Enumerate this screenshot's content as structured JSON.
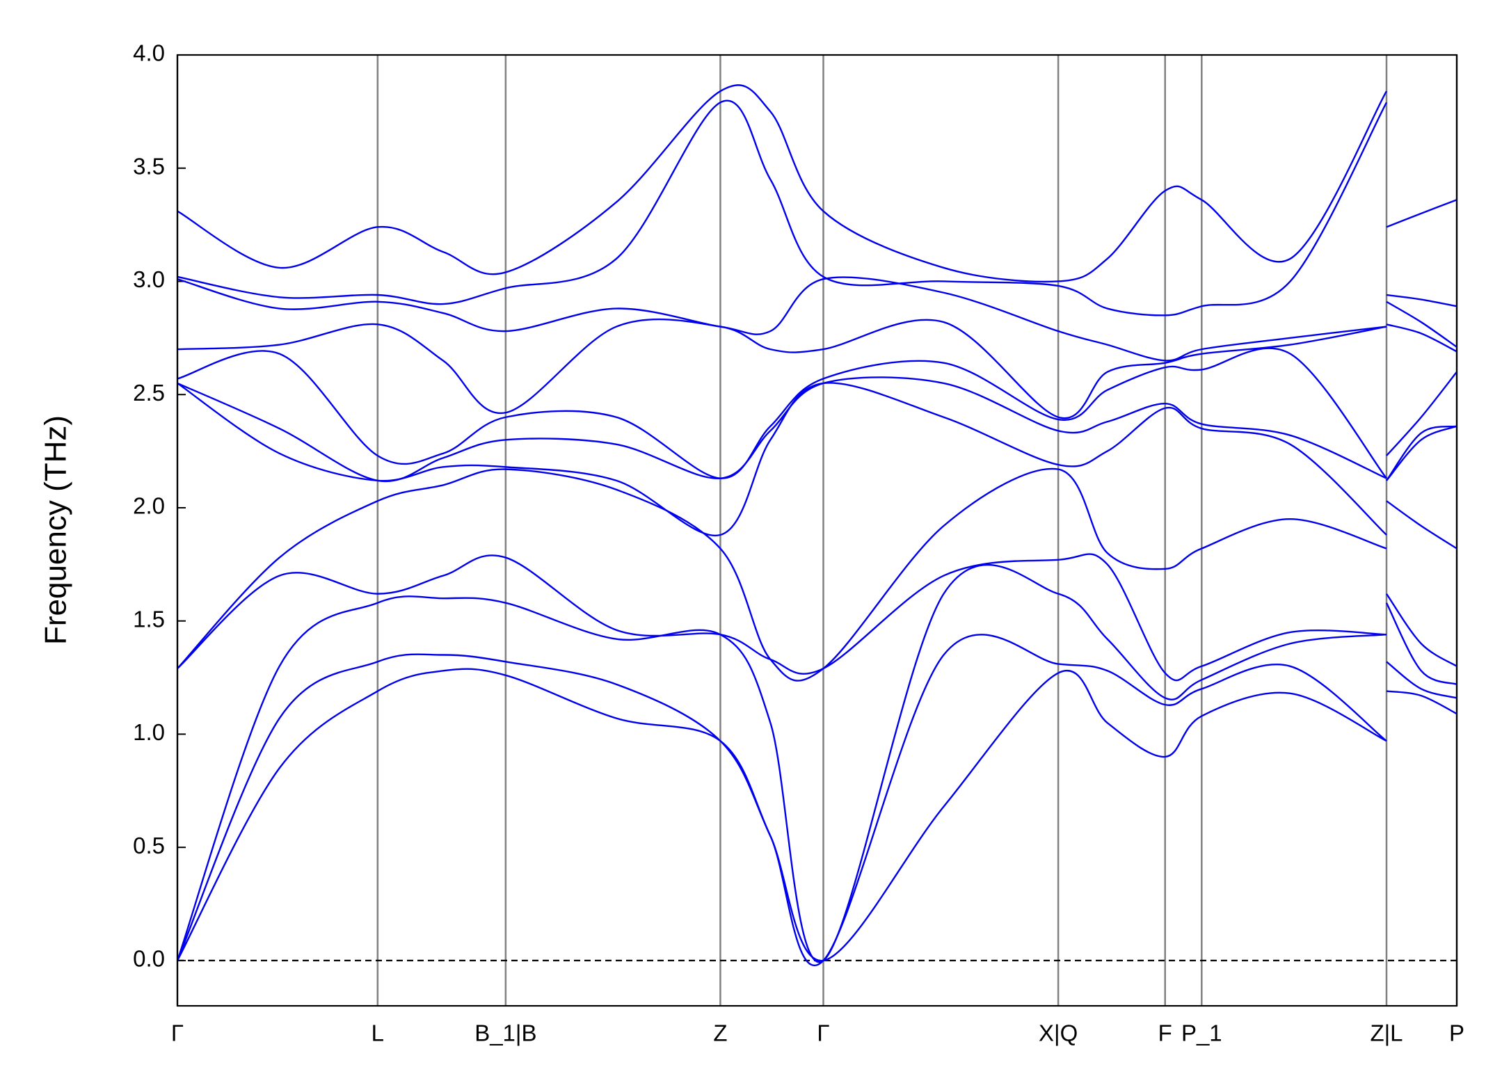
{
  "chart_data": {
    "type": "line",
    "ylabel": "Frequency (THz)",
    "color": "#0000ee",
    "zero_line": true,
    "xlim": [
      0,
      13.29
    ],
    "ylim": [
      -0.2,
      4.0
    ],
    "xticks": [
      {
        "value": 0,
        "label": "Γ"
      },
      {
        "value": 2.08,
        "label": "L"
      },
      {
        "value": 3.41,
        "label": "B_1|B"
      },
      {
        "value": 5.64,
        "label": "Z"
      },
      {
        "value": 6.71,
        "label": "Γ"
      },
      {
        "value": 9.15,
        "label": "X|Q"
      },
      {
        "value": 10.26,
        "label": "F"
      },
      {
        "value": 10.64,
        "label": "P_1"
      },
      {
        "value": 12.56,
        "label": "Z|L"
      },
      {
        "value": 13.29,
        "label": "P"
      }
    ],
    "yticks": [
      {
        "value": 0,
        "label": "0.0"
      },
      0.5,
      {
        "value": 1,
        "label": "1.0"
      },
      1.5,
      {
        "value": 2,
        "label": "2.0"
      },
      2.5,
      {
        "value": 3,
        "label": "3.0"
      },
      3.5,
      {
        "value": 4,
        "label": "4.0"
      }
    ],
    "x": [
      0,
      1.06,
      2.08,
      2.76,
      3.41,
      4.56,
      5.64,
      6.16,
      6.71,
      7.96,
      9.15,
      9.66,
      10.26,
      10.64,
      11.56,
      12.56
    ],
    "series": [
      {
        "values": [
          0,
          0.85,
          1.19,
          1.28,
          1.26,
          1.07,
          0.97,
          0.55,
          0,
          0.68,
          1.27,
          1.05,
          0.9,
          1.08,
          1.18,
          0.97
        ]
      },
      {
        "values": [
          0,
          1.07,
          1.32,
          1.35,
          1.32,
          1.22,
          0.97,
          0.55,
          0,
          1.35,
          1.31,
          1.28,
          1.13,
          1.2,
          1.3,
          0.97
        ]
      },
      {
        "values": [
          0,
          1.3,
          1.58,
          1.6,
          1.58,
          1.42,
          1.44,
          1.05,
          0,
          1.62,
          1.62,
          1.42,
          1.16,
          1.24,
          1.4,
          1.44
        ]
      },
      {
        "values": [
          1.29,
          1.7,
          1.62,
          1.7,
          1.78,
          1.46,
          1.44,
          1.33,
          1.29,
          1.7,
          1.77,
          1.75,
          1.27,
          1.3,
          1.45,
          1.44
        ]
      },
      {
        "values": [
          1.29,
          1.78,
          2.03,
          2.1,
          2.17,
          2.08,
          1.82,
          1.33,
          1.29,
          1.92,
          2.17,
          1.8,
          1.73,
          1.82,
          1.95,
          1.82
        ]
      },
      {
        "values": [
          2.55,
          2.24,
          2.12,
          2.18,
          2.18,
          2.12,
          1.88,
          2.3,
          2.55,
          2.4,
          2.19,
          2.25,
          2.44,
          2.35,
          2.28,
          1.88
        ]
      },
      {
        "values": [
          2.55,
          2.35,
          2.12,
          2.22,
          2.3,
          2.28,
          2.13,
          2.34,
          2.55,
          2.55,
          2.34,
          2.38,
          2.46,
          2.37,
          2.32,
          2.13
        ]
      },
      {
        "values": [
          2.57,
          2.68,
          2.23,
          2.24,
          2.4,
          2.4,
          2.13,
          2.36,
          2.57,
          2.64,
          2.39,
          2.52,
          2.62,
          2.61,
          2.68,
          2.13
        ]
      },
      {
        "values": [
          2.7,
          2.72,
          2.81,
          2.65,
          2.42,
          2.8,
          2.8,
          2.7,
          2.7,
          2.82,
          2.4,
          2.6,
          2.64,
          2.68,
          2.72,
          2.8
        ]
      },
      {
        "values": [
          3.01,
          2.88,
          2.91,
          2.86,
          2.78,
          2.88,
          2.8,
          2.78,
          3.01,
          2.95,
          2.78,
          2.72,
          2.65,
          2.7,
          2.75,
          2.8
        ]
      },
      {
        "values": [
          3.02,
          2.93,
          2.94,
          2.9,
          2.97,
          3.1,
          3.79,
          3.45,
          3.02,
          3.0,
          2.98,
          2.88,
          2.85,
          2.89,
          3.0,
          3.79
        ]
      },
      {
        "values": [
          3.31,
          3.06,
          3.24,
          3.13,
          3.04,
          3.35,
          3.84,
          3.75,
          3.31,
          3.06,
          3.0,
          3.1,
          3.4,
          3.36,
          3.1,
          3.84
        ]
      },
      {
        "x": [
          12.56,
          12.92,
          13.29
        ],
        "values": [
          1.19,
          1.17,
          1.09
        ]
      },
      {
        "x": [
          12.56,
          12.92,
          13.29
        ],
        "values": [
          1.32,
          1.2,
          1.16
        ]
      },
      {
        "x": [
          12.56,
          12.92,
          13.29
        ],
        "values": [
          1.58,
          1.28,
          1.22
        ]
      },
      {
        "x": [
          12.56,
          12.92,
          13.29
        ],
        "values": [
          1.62,
          1.4,
          1.3
        ]
      },
      {
        "x": [
          12.56,
          12.92,
          13.29
        ],
        "values": [
          2.03,
          1.92,
          1.82
        ]
      },
      {
        "x": [
          12.56,
          12.92,
          13.29
        ],
        "values": [
          2.12,
          2.3,
          2.36
        ]
      },
      {
        "x": [
          12.56,
          12.92,
          13.29
        ],
        "values": [
          2.12,
          2.33,
          2.36
        ]
      },
      {
        "x": [
          12.56,
          12.92,
          13.29
        ],
        "values": [
          2.23,
          2.4,
          2.6
        ]
      },
      {
        "x": [
          12.56,
          12.92,
          13.29
        ],
        "values": [
          2.81,
          2.77,
          2.69
        ]
      },
      {
        "x": [
          12.56,
          12.92,
          13.29
        ],
        "values": [
          2.91,
          2.82,
          2.71
        ]
      },
      {
        "x": [
          12.56,
          12.92,
          13.29
        ],
        "values": [
          2.94,
          2.92,
          2.89
        ]
      },
      {
        "x": [
          12.56,
          12.92,
          13.29
        ],
        "values": [
          3.24,
          3.3,
          3.36
        ]
      }
    ]
  }
}
